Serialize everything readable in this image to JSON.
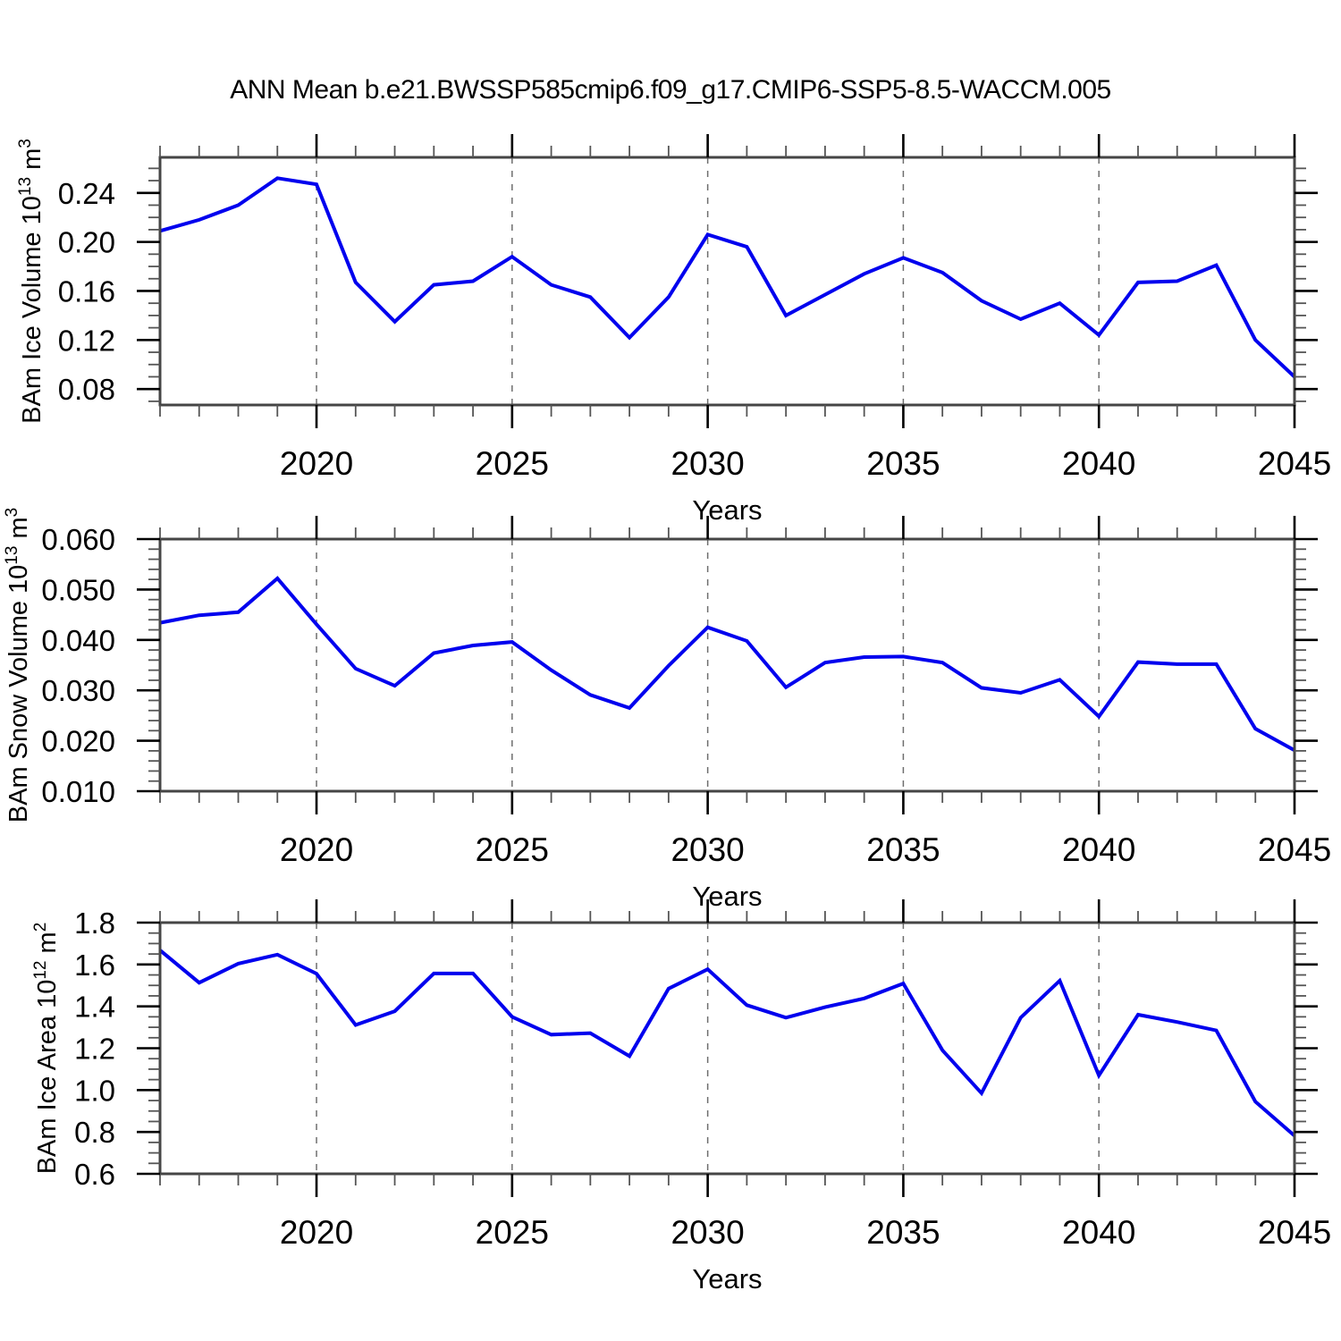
{
  "title": "ANN Mean b.e21.BWSSP585cmip6.f09_g17.CMIP6-SSP5-8.5-WACCM.005",
  "xlabel": "Years",
  "line_color": "#0000ee",
  "grid_color": "#6e6e6e",
  "border_color": "#454545",
  "major_tick_color": "#000000",
  "minor_tick_color": "#555555",
  "years": [
    2016,
    2017,
    2018,
    2019,
    2020,
    2021,
    2022,
    2023,
    2024,
    2025,
    2026,
    2027,
    2028,
    2029,
    2030,
    2031,
    2032,
    2033,
    2034,
    2035,
    2036,
    2037,
    2038,
    2039,
    2040,
    2041,
    2042,
    2043,
    2044,
    2045
  ],
  "xticks": [
    2020,
    2025,
    2030,
    2035,
    2040,
    2045
  ],
  "xtick_labels": [
    "2020",
    "2025",
    "2030",
    "2035",
    "2040",
    "2045"
  ],
  "grid_x": [
    2020,
    2025,
    2030,
    2035,
    2040
  ],
  "chart_data": [
    {
      "type": "line",
      "name": "ice-volume",
      "ylabel": "BAm Ice Volume 10^13 m^3",
      "ylabel_parts": [
        {
          "t": "BAm Ice Volume 10"
        },
        {
          "t": "13",
          "sup": true
        },
        {
          "t": " m"
        },
        {
          "t": "3",
          "sup": true
        }
      ],
      "xlabel": "Years",
      "x": [
        2016,
        2017,
        2018,
        2019,
        2020,
        2021,
        2022,
        2023,
        2024,
        2025,
        2026,
        2027,
        2028,
        2029,
        2030,
        2031,
        2032,
        2033,
        2034,
        2035,
        2036,
        2037,
        2038,
        2039,
        2040,
        2041,
        2042,
        2043,
        2044,
        2045
      ],
      "values": [
        0.209,
        0.218,
        0.23,
        0.252,
        0.247,
        0.167,
        0.135,
        0.165,
        0.168,
        0.188,
        0.165,
        0.155,
        0.122,
        0.155,
        0.206,
        0.196,
        0.14,
        0.157,
        0.174,
        0.187,
        0.175,
        0.152,
        0.137,
        0.15,
        0.124,
        0.167,
        0.168,
        0.181,
        0.12,
        0.09
      ],
      "ylim": [
        0.067,
        0.269
      ],
      "xlim": [
        2016,
        2045
      ],
      "yticks": [
        0.24,
        0.2,
        0.16,
        0.12,
        0.08
      ],
      "ytick_labels": [
        "0.24",
        "0.20",
        "0.16",
        "0.12",
        "0.08"
      ],
      "minor_y_step": 0.01,
      "grid": "x-dashed",
      "legend": "none"
    },
    {
      "type": "line",
      "name": "snow-volume",
      "ylabel": "BAm Snow Volume 10^13 m^3",
      "ylabel_parts": [
        {
          "t": "BAm Snow Volume 10"
        },
        {
          "t": "13",
          "sup": true
        },
        {
          "t": " m"
        },
        {
          "t": "3",
          "sup": true
        }
      ],
      "xlabel": "Years",
      "x": [
        2016,
        2017,
        2018,
        2019,
        2020,
        2021,
        2022,
        2023,
        2024,
        2025,
        2026,
        2027,
        2028,
        2029,
        2030,
        2031,
        2032,
        2033,
        2034,
        2035,
        2036,
        2037,
        2038,
        2039,
        2040,
        2041,
        2042,
        2043,
        2044,
        2045
      ],
      "values": [
        0.0434,
        0.0449,
        0.0455,
        0.0522,
        0.0431,
        0.0343,
        0.0309,
        0.0374,
        0.0389,
        0.0396,
        0.034,
        0.0291,
        0.0265,
        0.0349,
        0.0425,
        0.0398,
        0.0306,
        0.0355,
        0.0366,
        0.0367,
        0.0355,
        0.0305,
        0.0295,
        0.0321,
        0.0248,
        0.0356,
        0.0352,
        0.0352,
        0.0224,
        0.0181
      ],
      "ylim": [
        0.01,
        0.06
      ],
      "xlim": [
        2016,
        2045
      ],
      "yticks": [
        0.06,
        0.05,
        0.04,
        0.03,
        0.02,
        0.01
      ],
      "ytick_labels": [
        "0.060",
        "0.050",
        "0.040",
        "0.030",
        "0.020",
        "0.010"
      ],
      "minor_y_step": 0.002,
      "grid": "x-dashed",
      "legend": "none"
    },
    {
      "type": "line",
      "name": "ice-area",
      "ylabel": "BAm Ice Area 10^12 m^2",
      "ylabel_parts": [
        {
          "t": "BAm Ice Area 10"
        },
        {
          "t": "12",
          "sup": true
        },
        {
          "t": " m"
        },
        {
          "t": "2",
          "sup": true
        }
      ],
      "xlabel": "Years",
      "x": [
        2016,
        2017,
        2018,
        2019,
        2020,
        2021,
        2022,
        2023,
        2024,
        2025,
        2026,
        2027,
        2028,
        2029,
        2030,
        2031,
        2032,
        2033,
        2034,
        2035,
        2036,
        2037,
        2038,
        2039,
        2040,
        2041,
        2042,
        2043,
        2044,
        2045
      ],
      "values": [
        1.668,
        1.513,
        1.604,
        1.647,
        1.556,
        1.311,
        1.377,
        1.557,
        1.557,
        1.35,
        1.265,
        1.272,
        1.162,
        1.485,
        1.577,
        1.406,
        1.346,
        1.396,
        1.438,
        1.509,
        1.19,
        0.985,
        1.346,
        1.523,
        1.07,
        1.36,
        1.325,
        1.285,
        0.945,
        0.782
      ],
      "ylim": [
        0.6,
        1.8
      ],
      "xlim": [
        2016,
        2045
      ],
      "yticks": [
        1.8,
        1.6,
        1.4,
        1.2,
        1.0,
        0.8,
        0.6
      ],
      "ytick_labels": [
        "1.8",
        "1.6",
        "1.4",
        "1.2",
        "1.0",
        "0.8",
        "0.6"
      ],
      "minor_y_step": 0.05,
      "grid": "x-dashed",
      "legend": "none"
    }
  ]
}
